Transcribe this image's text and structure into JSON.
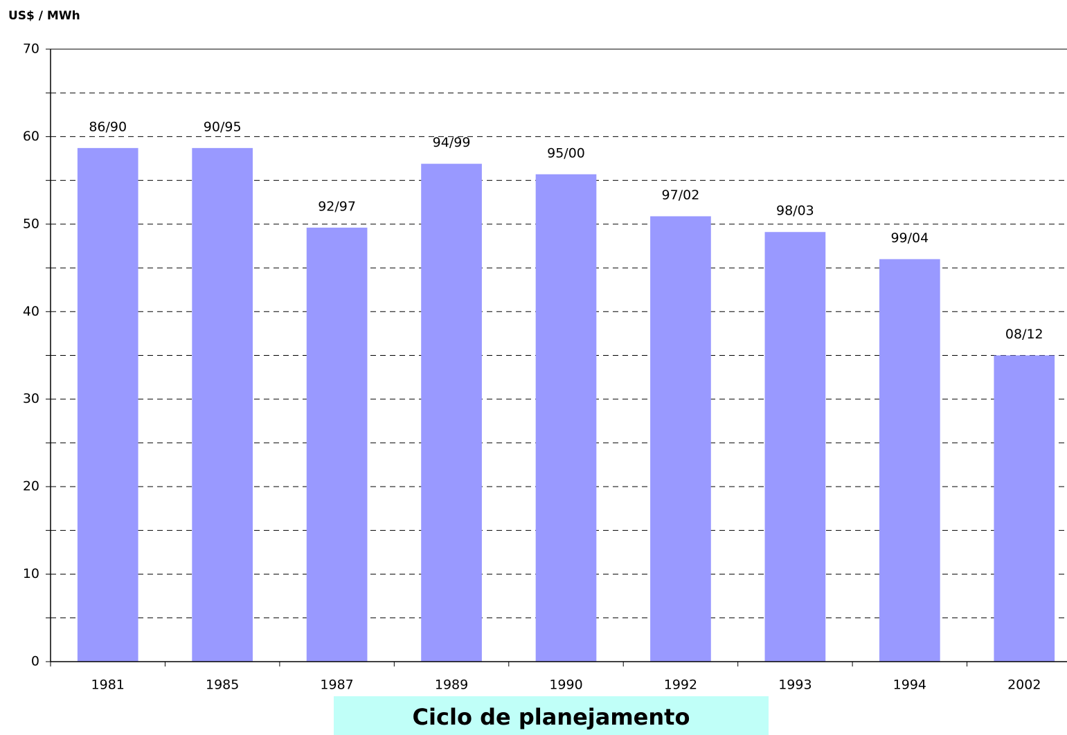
{
  "chart_data": {
    "type": "bar",
    "y_label": "US$ / MWh",
    "x_label": "Ciclo de planejamento",
    "categories": [
      "1981",
      "1985",
      "1987",
      "1989",
      "1990",
      "1992",
      "1993",
      "1994",
      "2002"
    ],
    "values": [
      58.7,
      58.7,
      49.6,
      56.9,
      55.7,
      50.9,
      49.1,
      46.0,
      35.0
    ],
    "annotations": [
      "86/90",
      "90/95",
      "92/97",
      "94/99",
      "95/00",
      "97/02",
      "98/03",
      "99/04",
      "08/12"
    ],
    "color": "#9999ff",
    "ylim": [
      0,
      70
    ],
    "yticks": [
      0,
      10,
      20,
      30,
      40,
      50,
      60,
      70
    ],
    "yminor": [
      5,
      15,
      25,
      35,
      45,
      55,
      65
    ],
    "grid": true
  }
}
